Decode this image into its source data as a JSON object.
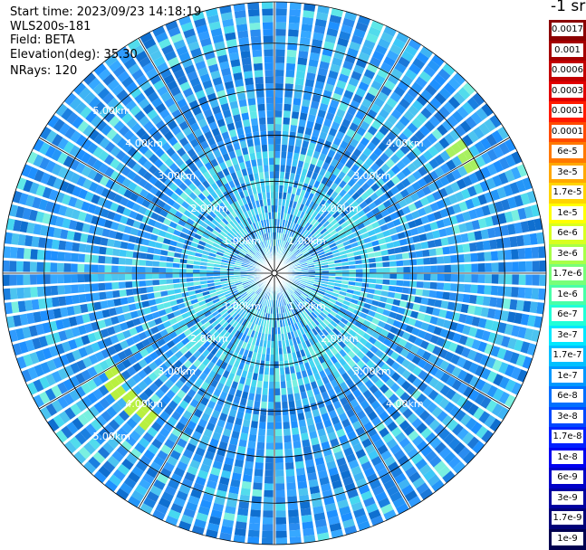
{
  "info": {
    "start_time": "Start time: 2023/09/23 14:18:19",
    "instrument": "WLS200s-181",
    "field": "Field: BETA",
    "elevation": "Elevation(deg): 35.30",
    "nrays": "NRays: 120"
  },
  "colorbar": {
    "title": "-1 sr",
    "entries": [
      {
        "label": "0.0017",
        "color": "#8b0000"
      },
      {
        "label": "0.001",
        "color": "#a40000"
      },
      {
        "label": "0.0006",
        "color": "#c20000"
      },
      {
        "label": "0.0003",
        "color": "#e00000"
      },
      {
        "label": "0.00017",
        "color": "#ff1a00"
      },
      {
        "label": "0.0001",
        "color": "#ff4a00"
      },
      {
        "label": "6e-5",
        "color": "#ff7800"
      },
      {
        "label": "3e-5",
        "color": "#ffa800"
      },
      {
        "label": "1.7e-5",
        "color": "#ffd400"
      },
      {
        "label": "1e-5",
        "color": "#ffff00"
      },
      {
        "label": "6e-6",
        "color": "#d8ff20"
      },
      {
        "label": "3e-6",
        "color": "#a8ff48"
      },
      {
        "label": "1.7e-6",
        "color": "#78ff78"
      },
      {
        "label": "1e-6",
        "color": "#48ffa8"
      },
      {
        "label": "6e-7",
        "color": "#20ffd8"
      },
      {
        "label": "3e-7",
        "color": "#00e8ff"
      },
      {
        "label": "1.7e-7",
        "color": "#00c0ff"
      },
      {
        "label": "1e-7",
        "color": "#0098ff"
      },
      {
        "label": "6e-8",
        "color": "#0070ff"
      },
      {
        "label": "3e-8",
        "color": "#0048ff"
      },
      {
        "label": "1.7e-8",
        "color": "#0020ff"
      },
      {
        "label": "1e-8",
        "color": "#0000f0"
      },
      {
        "label": "6e-9",
        "color": "#0000c8"
      },
      {
        "label": "3e-9",
        "color": "#0000a0"
      },
      {
        "label": "1.7e-9",
        "color": "#000078"
      },
      {
        "label": "1e-9",
        "color": "#000050"
      }
    ]
  },
  "range_rings": [
    {
      "km": 1,
      "label": "1.00km"
    },
    {
      "km": 2,
      "label": "2.00km"
    },
    {
      "km": 3,
      "label": "3.00km"
    },
    {
      "km": 4,
      "label": "4.00km"
    },
    {
      "km": 5,
      "label": "5.00km"
    }
  ],
  "max_range_km": 5.9,
  "spokes_deg": [
    0,
    30,
    60,
    90,
    120,
    150,
    180,
    210,
    240,
    270,
    300,
    330
  ]
}
